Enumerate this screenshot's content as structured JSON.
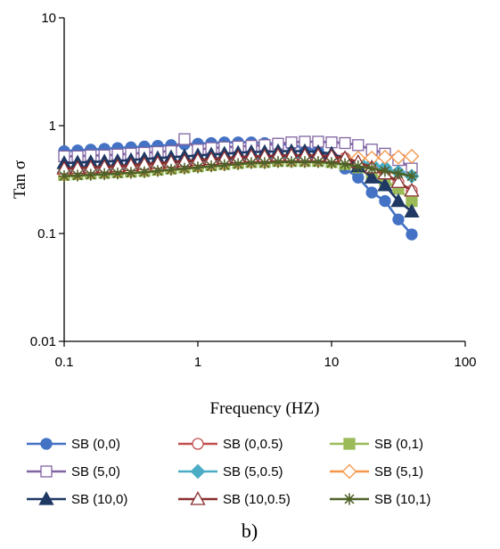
{
  "chart_data": {
    "type": "line",
    "x_scale": "log",
    "y_scale": "log",
    "xlabel": "Frequency (HZ)",
    "ylabel": "Tan σ",
    "xlim": [
      0.1,
      100
    ],
    "ylim": [
      0.01,
      10
    ],
    "x_tick_values": [
      0.1,
      1,
      10,
      100
    ],
    "x_tick_labels": [
      "0.1",
      "1",
      "10",
      "100"
    ],
    "y_tick_values": [
      0.01,
      0.1,
      1,
      10
    ],
    "y_tick_labels": [
      "0.01",
      "0.1",
      "1",
      "10"
    ],
    "grid": false,
    "legend_position": "bottom",
    "caption": "b)",
    "x": [
      0.1,
      0.126,
      0.158,
      0.2,
      0.251,
      0.316,
      0.398,
      0.501,
      0.631,
      0.794,
      1,
      1.26,
      1.58,
      2,
      2.51,
      3.16,
      3.98,
      5.01,
      6.31,
      7.94,
      10,
      12.6,
      15.8,
      20,
      25.1,
      31.6,
      39.8
    ],
    "series": [
      {
        "name": "SB (0,0)",
        "color": "#4472C4",
        "marker": "circle-filled",
        "values": [
          0.58,
          0.59,
          0.6,
          0.61,
          0.62,
          0.63,
          0.64,
          0.65,
          0.66,
          0.67,
          0.68,
          0.69,
          0.7,
          0.7,
          0.7,
          0.69,
          0.68,
          0.66,
          0.63,
          0.58,
          0.5,
          0.4,
          0.33,
          0.24,
          0.2,
          0.135,
          0.098
        ]
      },
      {
        "name": "SB (0,0.5)",
        "color": "#C0504D",
        "marker": "circle-open",
        "values": [
          0.38,
          0.385,
          0.39,
          0.395,
          0.4,
          0.41,
          0.42,
          0.43,
          0.44,
          0.45,
          0.46,
          0.47,
          0.48,
          0.49,
          0.5,
          0.5,
          0.51,
          0.51,
          0.52,
          0.52,
          0.52,
          0.5,
          0.46,
          0.41,
          0.35,
          0.3,
          0.25
        ]
      },
      {
        "name": "SB (0,1)",
        "color": "#9BBB59",
        "marker": "square-filled",
        "values": [
          0.35,
          0.355,
          0.36,
          0.365,
          0.37,
          0.375,
          0.38,
          0.39,
          0.4,
          0.41,
          0.42,
          0.43,
          0.44,
          0.45,
          0.46,
          0.46,
          0.47,
          0.47,
          0.47,
          0.47,
          0.46,
          0.44,
          0.41,
          0.36,
          0.31,
          0.26,
          0.2
        ]
      },
      {
        "name": "SB (5,0)",
        "color": "#8064A2",
        "marker": "square-open",
        "values": [
          0.52,
          0.52,
          0.53,
          0.53,
          0.54,
          0.55,
          0.56,
          0.57,
          0.58,
          0.75,
          0.6,
          0.62,
          0.63,
          0.64,
          0.65,
          0.66,
          0.68,
          0.7,
          0.71,
          0.71,
          0.7,
          0.69,
          0.66,
          0.6,
          0.55,
          0.48,
          0.4
        ]
      },
      {
        "name": "SB (5,0.5)",
        "color": "#4BACC6",
        "marker": "diamond-filled",
        "values": [
          0.37,
          0.375,
          0.38,
          0.385,
          0.39,
          0.395,
          0.4,
          0.41,
          0.42,
          0.43,
          0.44,
          0.45,
          0.46,
          0.47,
          0.48,
          0.49,
          0.49,
          0.5,
          0.5,
          0.5,
          0.5,
          0.49,
          0.47,
          0.44,
          0.41,
          0.37,
          0.34
        ]
      },
      {
        "name": "SB (5,1)",
        "color": "#F79646",
        "marker": "diamond-open",
        "values": [
          0.36,
          0.365,
          0.37,
          0.375,
          0.38,
          0.385,
          0.39,
          0.4,
          0.41,
          0.42,
          0.43,
          0.44,
          0.45,
          0.46,
          0.47,
          0.47,
          0.48,
          0.48,
          0.48,
          0.48,
          0.48,
          0.49,
          0.5,
          0.5,
          0.51,
          0.51,
          0.52
        ]
      },
      {
        "name": "SB (10,0)",
        "color": "#1F3864",
        "marker": "triangle-filled",
        "values": [
          0.45,
          0.455,
          0.46,
          0.465,
          0.47,
          0.48,
          0.49,
          0.5,
          0.51,
          0.52,
          0.53,
          0.54,
          0.55,
          0.56,
          0.57,
          0.57,
          0.58,
          0.58,
          0.58,
          0.57,
          0.55,
          0.5,
          0.42,
          0.33,
          0.28,
          0.2,
          0.16
        ]
      },
      {
        "name": "SB (10,0.5)",
        "color": "#8B2E2E",
        "marker": "triangle-open",
        "values": [
          0.4,
          0.405,
          0.41,
          0.415,
          0.42,
          0.43,
          0.44,
          0.45,
          0.46,
          0.47,
          0.48,
          0.49,
          0.5,
          0.51,
          0.52,
          0.52,
          0.53,
          0.53,
          0.53,
          0.53,
          0.52,
          0.5,
          0.46,
          0.41,
          0.36,
          0.3,
          0.25
        ]
      },
      {
        "name": "SB (10,1)",
        "color": "#4F6228",
        "marker": "asterisk",
        "values": [
          0.34,
          0.345,
          0.35,
          0.355,
          0.36,
          0.365,
          0.37,
          0.38,
          0.39,
          0.4,
          0.41,
          0.42,
          0.43,
          0.44,
          0.45,
          0.45,
          0.46,
          0.46,
          0.46,
          0.46,
          0.45,
          0.44,
          0.42,
          0.4,
          0.38,
          0.36,
          0.34
        ]
      }
    ]
  }
}
